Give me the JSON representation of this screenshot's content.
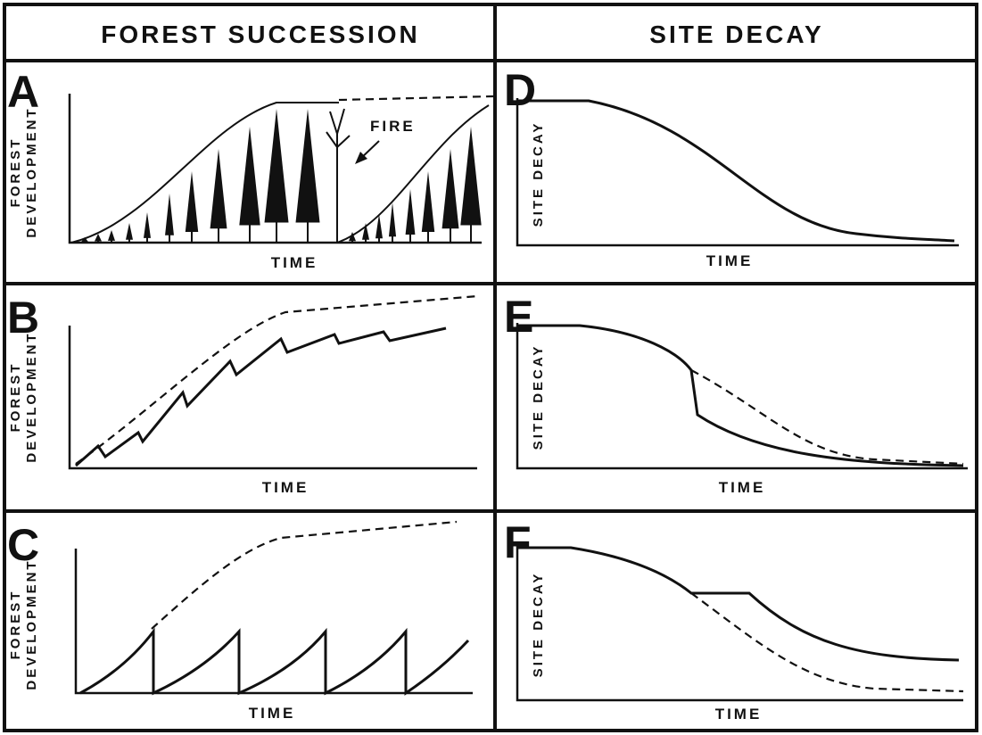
{
  "headers": [
    "FOREST SUCCESSION",
    "SITE DECAY"
  ],
  "panels": [
    {
      "letter": "A",
      "y_label": [
        "FOREST",
        "DEVELOPMENT"
      ],
      "x_label": "TIME",
      "annotation": "FIRE"
    },
    {
      "letter": "B",
      "y_label": [
        "FOREST",
        "DEVELOPMENT"
      ],
      "x_label": "TIME"
    },
    {
      "letter": "C",
      "y_label": [
        "FOREST",
        "DEVELOPMENT"
      ],
      "x_label": "TIME"
    },
    {
      "letter": "D",
      "y_label": "SITE DECAY",
      "x_label": "TIME"
    },
    {
      "letter": "E",
      "y_label": "SITE DECAY",
      "x_label": "TIME"
    },
    {
      "letter": "F",
      "y_label": "SITE DECAY",
      "x_label": "TIME"
    }
  ]
}
